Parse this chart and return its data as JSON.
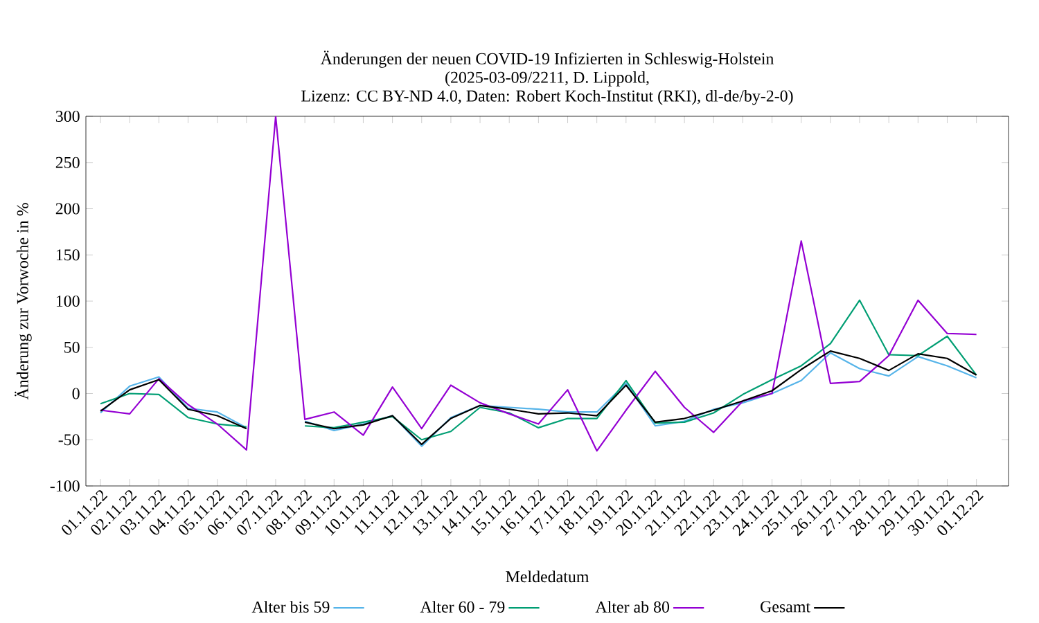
{
  "chart_data": {
    "type": "line",
    "title": "Änderungen der neuen COVID-19 Infizierten in Schleswig-Holstein",
    "subtitle": "(2025-03-09/2211, D. Lippold,",
    "annotations": [
      "Lizenz: CC BY-ND 4.0, Daten: Robert Koch-Institut (RKI), dl-de/by-2-0)"
    ],
    "xlabel": "Meldedatum",
    "ylabel": "Änderung zur Vorwoche in %",
    "categories": [
      "01.11.22",
      "02.11.22",
      "03.11.22",
      "04.11.22",
      "05.11.22",
      "06.11.22",
      "07.11.22",
      "08.11.22",
      "09.11.22",
      "10.11.22",
      "11.11.22",
      "12.11.22",
      "13.11.22",
      "14.11.22",
      "15.11.22",
      "16.11.22",
      "17.11.22",
      "18.11.22",
      "19.11.22",
      "20.11.22",
      "21.11.22",
      "22.11.22",
      "23.11.22",
      "24.11.22",
      "25.11.22",
      "26.11.22",
      "27.11.22",
      "28.11.22",
      "29.11.22",
      "30.11.22",
      "01.12.22"
    ],
    "series": [
      {
        "name": "Alter bis 59",
        "color": "#56b4e9",
        "values": [
          -21,
          8,
          18,
          -16,
          -20,
          -37,
          null,
          -30,
          -40,
          -33,
          -24,
          -57,
          -26,
          -13,
          -15,
          -17,
          -20,
          -20,
          11,
          -35,
          -30,
          -17,
          -10,
          0,
          14,
          44,
          27,
          19,
          40,
          30,
          17
        ]
      },
      {
        "name": "Alter 60 - 79",
        "color": "#009e73",
        "values": [
          -11,
          0,
          -1,
          -26,
          -33,
          -36,
          null,
          -35,
          -37,
          -31,
          -25,
          -50,
          -41,
          -15,
          -21,
          -37,
          -27,
          -27,
          14,
          -32,
          -31,
          -21,
          -1,
          15,
          30,
          54,
          101,
          42,
          41,
          62,
          20
        ]
      },
      {
        "name": "Alter ab 80",
        "color": "#9400d3",
        "values": [
          -18,
          -22,
          16,
          -12,
          -33,
          -61,
          300,
          -28,
          -20,
          -45,
          7,
          -38,
          9,
          -10,
          -22,
          -33,
          4,
          -62,
          -18,
          24,
          -15,
          -42,
          -8,
          0,
          165,
          11,
          13,
          41,
          101,
          65,
          64
        ]
      },
      {
        "name": "Gesamt",
        "color": "#000000",
        "values": [
          -19,
          4,
          15,
          -17,
          -24,
          -38,
          null,
          -31,
          -38,
          -34,
          -24,
          -55,
          -27,
          -13,
          -17,
          -22,
          -21,
          -24,
          9,
          -31,
          -27,
          -18,
          -8,
          3,
          26,
          46,
          38,
          25,
          43,
          38,
          20
        ]
      }
    ],
    "ylim": [
      -100,
      300
    ],
    "yticks": [
      -100,
      -50,
      0,
      50,
      100,
      150,
      200,
      250,
      300
    ],
    "grid": false,
    "legend": "bottom"
  }
}
